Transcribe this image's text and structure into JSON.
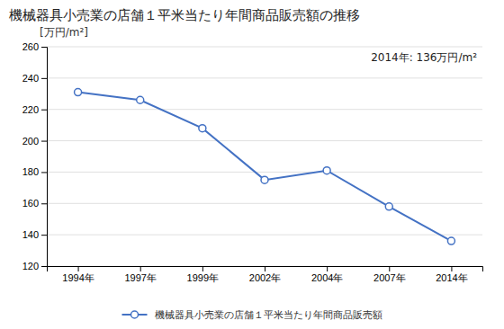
{
  "chart_data": {
    "type": "line",
    "title": "機械器具小売業の店舗１平米当たり年間商品販売額の推移",
    "ylabel": "[万円/m²]",
    "annotation": "2014年: 136万円/m²",
    "categories": [
      "1994年",
      "1997年",
      "1999年",
      "2002年",
      "2004年",
      "2007年",
      "2014年"
    ],
    "series": [
      {
        "name": "機械器具小売業の店舗１平米当たり年間商品販売額",
        "color": "#4472C4",
        "values": [
          231,
          226,
          208,
          175,
          181,
          158,
          136
        ]
      }
    ],
    "ylim": [
      120,
      260
    ],
    "yticks": [
      120,
      140,
      160,
      180,
      200,
      220,
      240,
      260
    ],
    "grid": true,
    "marker": "circle",
    "legend": "bottom"
  }
}
